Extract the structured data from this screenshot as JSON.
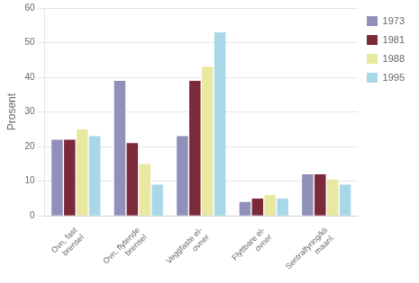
{
  "chart_data": {
    "type": "bar",
    "ylabel": "Prosent",
    "categories": [
      "Ovn, fast\nbrensel",
      "Ovn, flytende\nbrensel",
      "Veggfaste el-\novner",
      "Flyttbare el-\novner",
      "Sentralfyring/kli\nmaanl."
    ],
    "series": [
      {
        "name": "1973",
        "color": "#9090bb",
        "values": [
          22,
          39,
          23,
          4,
          12
        ]
      },
      {
        "name": "1981",
        "color": "#7b2a3a",
        "values": [
          22,
          21,
          39,
          5,
          12
        ]
      },
      {
        "name": "1988",
        "color": "#e8e8a0",
        "values": [
          25,
          15,
          43,
          6,
          10.5
        ]
      },
      {
        "name": "1995",
        "color": "#a8d8e8",
        "values": [
          23,
          9,
          53,
          5,
          9
        ]
      }
    ],
    "ylim": [
      0,
      60
    ],
    "yticks": [
      0,
      10,
      20,
      30,
      40,
      50,
      60
    ],
    "grid": true,
    "legend": "right"
  }
}
